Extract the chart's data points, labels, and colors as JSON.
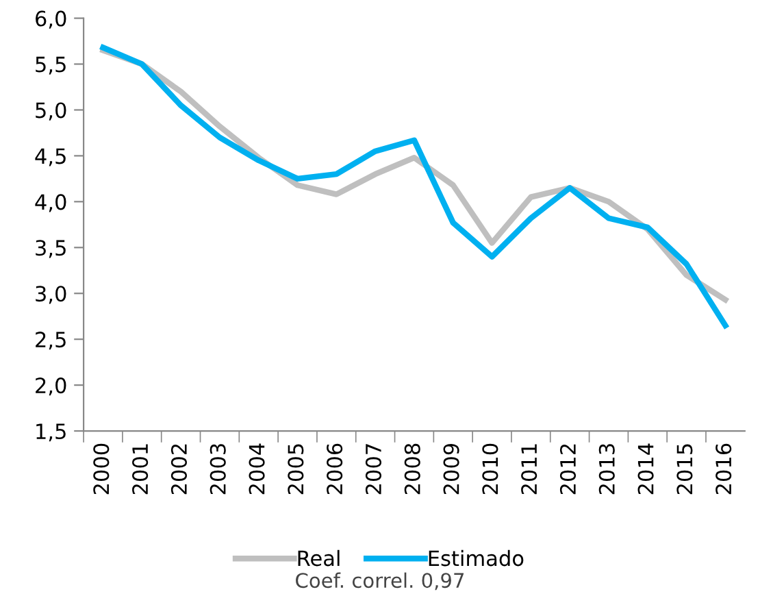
{
  "chart_data": {
    "type": "line",
    "categories": [
      "2000",
      "2001",
      "2002",
      "2003",
      "2004",
      "2005",
      "2006",
      "2007",
      "2008",
      "2009",
      "2010",
      "2011",
      "2012",
      "2013",
      "2014",
      "2015",
      "2016"
    ],
    "series": [
      {
        "name": "Real",
        "color": "#bfbfbf",
        "values": [
          5.65,
          5.5,
          5.2,
          4.82,
          4.48,
          4.18,
          4.08,
          4.3,
          4.48,
          4.18,
          3.55,
          4.05,
          4.15,
          4.0,
          3.7,
          3.2,
          2.93
        ]
      },
      {
        "name": "Estimado",
        "color": "#00b0f0",
        "values": [
          5.68,
          5.5,
          5.05,
          4.7,
          4.45,
          4.25,
          4.3,
          4.55,
          4.67,
          3.77,
          3.4,
          3.82,
          4.15,
          3.82,
          3.72,
          3.32,
          2.65
        ]
      }
    ],
    "ylim": [
      1.5,
      6.0
    ],
    "yticks": [
      {
        "value": 1.5,
        "label": "1,5"
      },
      {
        "value": 2.0,
        "label": "2,0"
      },
      {
        "value": 2.5,
        "label": "2,5"
      },
      {
        "value": 3.0,
        "label": "3,0"
      },
      {
        "value": 3.5,
        "label": "3,5"
      },
      {
        "value": 4.0,
        "label": "4,0"
      },
      {
        "value": 4.5,
        "label": "4,5"
      },
      {
        "value": 5.0,
        "label": "5,0"
      },
      {
        "value": 5.5,
        "label": "5,5"
      },
      {
        "value": 6.0,
        "label": "6,0"
      }
    ],
    "grid": false,
    "legend": "bottom",
    "marker": "none",
    "line_style": "solid",
    "annotations": [
      "Coef. correl. 0,97"
    ]
  }
}
